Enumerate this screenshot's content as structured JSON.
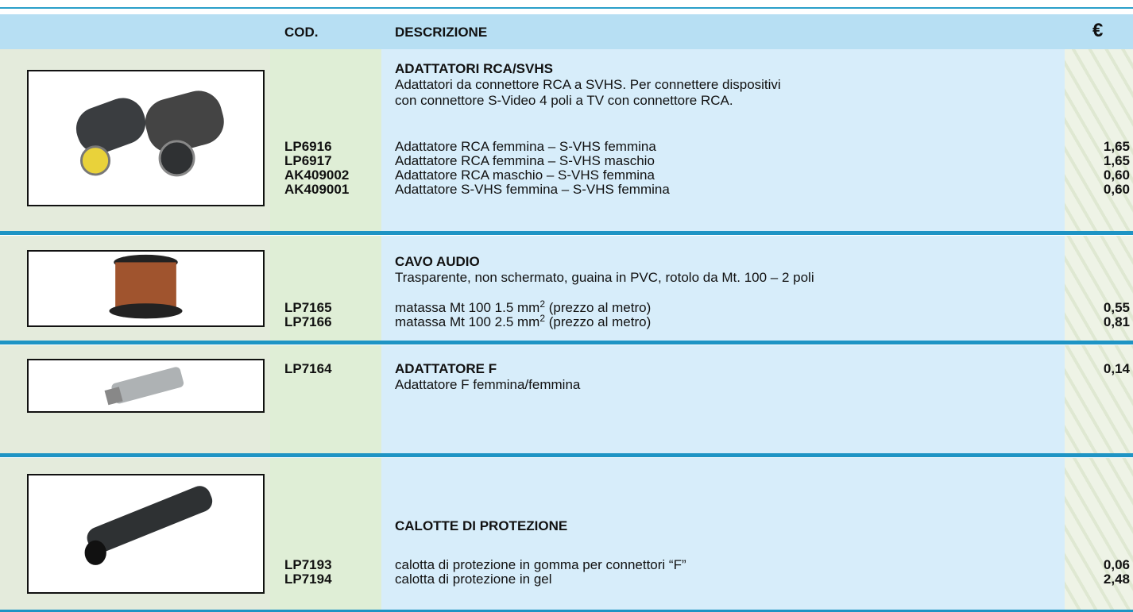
{
  "header": {
    "code": "COD.",
    "description": "DESCRIZIONE",
    "price": "€"
  },
  "sections": [
    {
      "title": "ADATTATORI RCA/SVHS",
      "text": [
        "Adattatori da connettore RCA a SVHS. Per connettere dispositivi",
        "con connettore S-Video 4 poli a TV con connettore RCA."
      ],
      "items": [
        {
          "code": "LP6916",
          "description": "Adattatore RCA femmina – S-VHS femmina",
          "price": "1,65"
        },
        {
          "code": "LP6917",
          "description": "Adattatore RCA femmina – S-VHS maschio",
          "price": "1,65"
        },
        {
          "code": "AK409002",
          "description": "Adattatore RCA maschio – S-VHS femmina",
          "price": "0,60"
        },
        {
          "code": "AK409001",
          "description": "Adattatore S-VHS femmina – S-VHS femmina",
          "price": "0,60"
        }
      ]
    },
    {
      "title": "CAVO AUDIO",
      "text": [
        "Trasparente, non schermato, guaina in PVC, rotolo da Mt. 100 – 2 poli"
      ],
      "items": [
        {
          "code": "LP7165",
          "description": "matassa Mt 100 1.5 mm",
          "sup": "2",
          "after": " (prezzo al metro)",
          "price": "0,55"
        },
        {
          "code": "LP7166",
          "description": "matassa Mt 100 2.5 mm",
          "sup": "2",
          "after": " (prezzo al metro)",
          "price": "0,81"
        }
      ]
    },
    {
      "title": "ADATTATORE F",
      "code": "LP7164",
      "price": "0,14",
      "text": [
        "Adattatore F femmina/femmina"
      ]
    },
    {
      "title": "CALOTTE DI PROTEZIONE",
      "items": [
        {
          "code": "LP7193",
          "description": "calotta di protezione in gomma per connettori “F”",
          "price": "0,06"
        },
        {
          "code": "LP7194",
          "description": "calotta di protezione in gel",
          "price": "2,48"
        }
      ]
    }
  ]
}
